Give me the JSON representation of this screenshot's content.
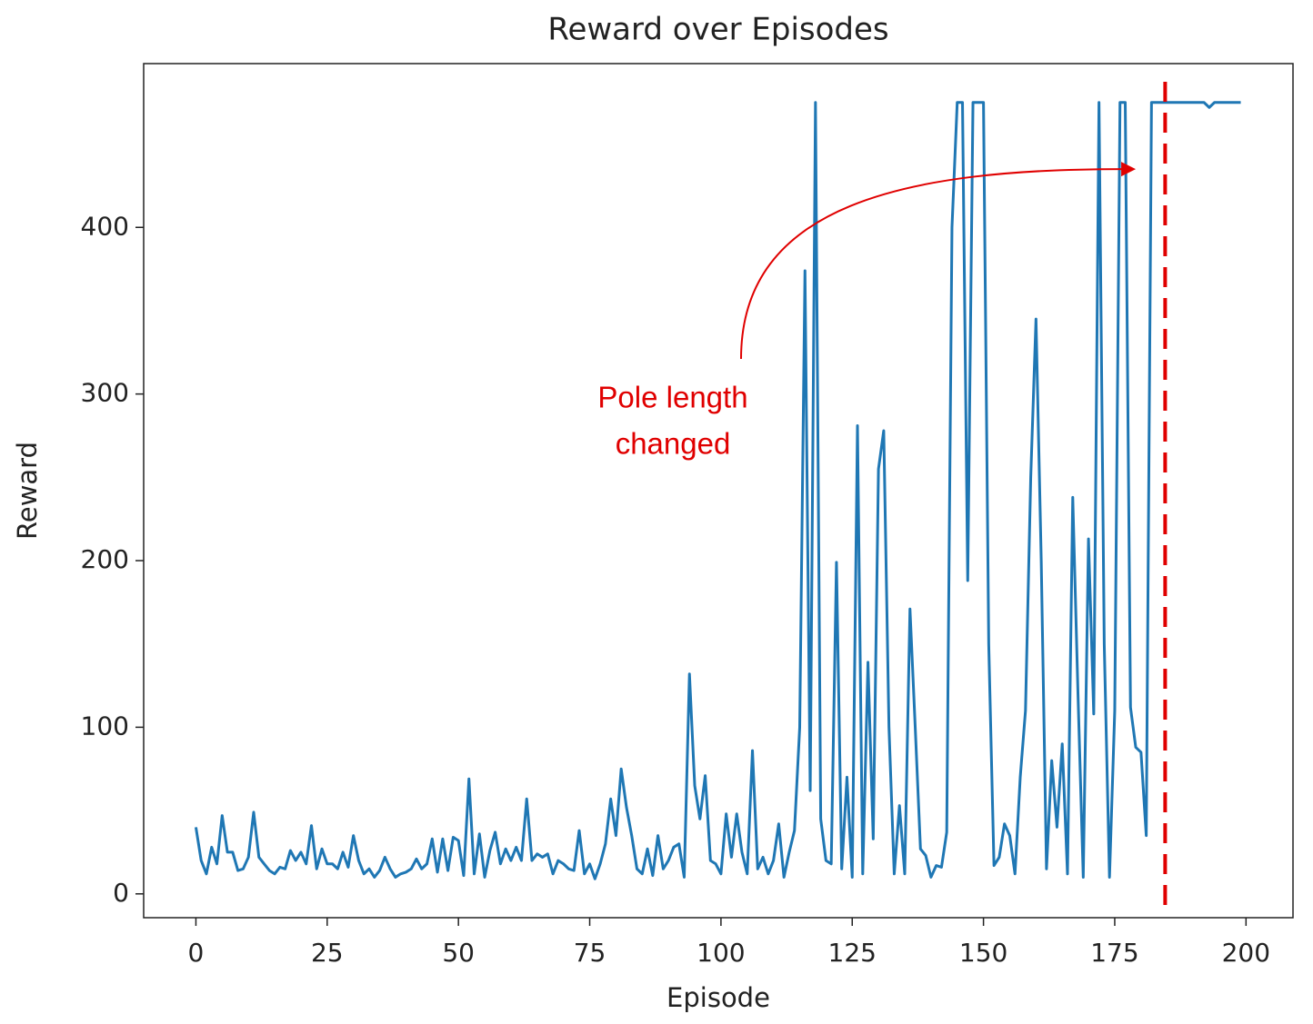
{
  "chart_data": {
    "type": "line",
    "title": "Reward over Episodes",
    "xlabel": "Episode",
    "ylabel": "Reward",
    "x": [
      0,
      1,
      2,
      3,
      4,
      5,
      6,
      7,
      8,
      9,
      10,
      11,
      12,
      13,
      14,
      15,
      16,
      17,
      18,
      19,
      20,
      21,
      22,
      23,
      24,
      25,
      26,
      27,
      28,
      29,
      30,
      31,
      32,
      33,
      34,
      35,
      36,
      37,
      38,
      39,
      40,
      41,
      42,
      43,
      44,
      45,
      46,
      47,
      48,
      49,
      50,
      51,
      52,
      53,
      54,
      55,
      56,
      57,
      58,
      59,
      60,
      61,
      62,
      63,
      64,
      65,
      66,
      67,
      68,
      69,
      70,
      71,
      72,
      73,
      74,
      75,
      76,
      77,
      78,
      79,
      80,
      81,
      82,
      83,
      84,
      85,
      86,
      87,
      88,
      89,
      90,
      91,
      92,
      93,
      94,
      95,
      96,
      97,
      98,
      99,
      100,
      101,
      102,
      103,
      104,
      105,
      106,
      107,
      108,
      109,
      110,
      111,
      112,
      113,
      114,
      115,
      116,
      117,
      118,
      119,
      120,
      121,
      122,
      123,
      124,
      125,
      126,
      127,
      128,
      129,
      130,
      131,
      132,
      133,
      134,
      135,
      136,
      137,
      138,
      139,
      140,
      141,
      142,
      143,
      144,
      145,
      146,
      147,
      148,
      149,
      150,
      151,
      152,
      153,
      154,
      155,
      156,
      157,
      158,
      159,
      160,
      161,
      162,
      163,
      164,
      165,
      166,
      167,
      168,
      169,
      170,
      171,
      172,
      173,
      174,
      175,
      176,
      177,
      178,
      179,
      180,
      181,
      182,
      183,
      184,
      185,
      186,
      187,
      188,
      189,
      190,
      191,
      192,
      193,
      194,
      195,
      196,
      197,
      198,
      199
    ],
    "series": [
      {
        "color": "#1f77b4",
        "values": [
          40,
          20,
          12,
          28,
          18,
          47,
          25,
          25,
          14,
          15,
          22,
          49,
          22,
          18,
          14,
          12,
          16,
          15,
          26,
          20,
          25,
          18,
          41,
          15,
          27,
          18,
          18,
          15,
          25,
          16,
          35,
          20,
          12,
          15,
          10,
          14,
          22,
          15,
          10,
          12,
          13,
          15,
          21,
          15,
          18,
          33,
          13,
          33,
          14,
          34,
          32,
          11,
          69,
          12,
          36,
          10,
          26,
          37,
          18,
          27,
          20,
          28,
          20,
          57,
          20,
          24,
          22,
          24,
          12,
          20,
          18,
          15,
          14,
          38,
          12,
          18,
          9,
          18,
          30,
          57,
          35,
          75,
          52,
          35,
          15,
          12,
          27,
          11,
          35,
          15,
          20,
          28,
          30,
          10,
          132,
          65,
          45,
          71,
          20,
          18,
          12,
          48,
          22,
          48,
          25,
          12,
          86,
          15,
          22,
          12,
          20,
          42,
          10,
          25,
          38,
          100,
          374,
          62,
          475,
          45,
          20,
          18,
          199,
          15,
          70,
          10,
          281,
          12,
          139,
          33,
          255,
          278,
          100,
          12,
          53,
          12,
          171,
          100,
          27,
          23,
          10,
          17,
          16,
          37,
          400,
          475,
          475,
          188,
          475,
          475,
          475,
          150,
          17,
          22,
          42,
          35,
          12,
          70,
          110,
          250,
          345,
          200,
          15,
          80,
          40,
          90,
          12,
          238,
          120,
          10,
          213,
          108,
          475,
          150,
          10,
          110,
          475,
          475,
          112,
          88,
          85,
          35,
          475,
          475,
          475,
          475,
          475,
          475,
          475,
          475,
          475,
          475,
          475,
          472,
          475,
          475,
          475,
          475,
          475,
          475
        ]
      }
    ],
    "xlim": [
      -9.95,
      208.95
    ],
    "ylim": [
      -14.3,
      498.3
    ],
    "xticks": [
      0,
      25,
      50,
      75,
      100,
      125,
      150,
      175,
      200
    ],
    "yticks": [
      0,
      100,
      200,
      300,
      400
    ],
    "vline_x": 184.6,
    "vline_color": "#e00000",
    "annotation": {
      "lines": [
        "Pole length",
        "changed"
      ],
      "xy": [
        179,
        435
      ],
      "color": "#e00000"
    }
  }
}
